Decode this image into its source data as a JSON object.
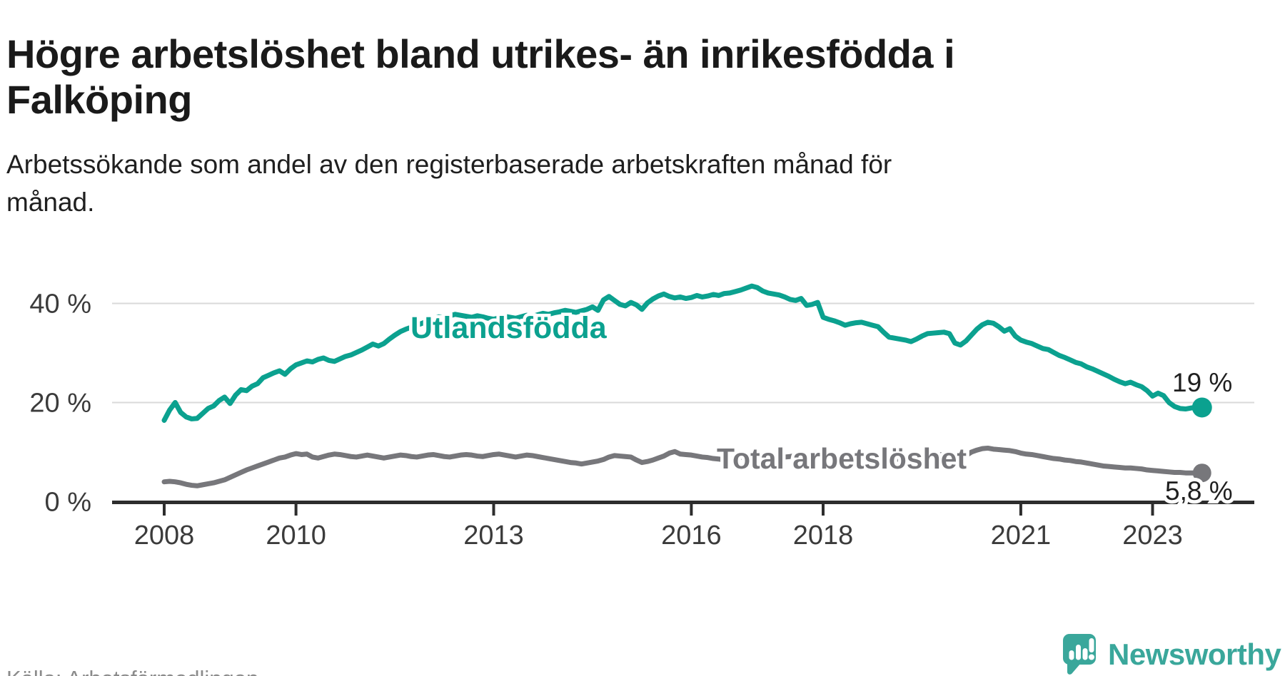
{
  "header": {
    "title": "Högre arbetslöshet bland utrikes- än inrikesfödda i Falköping",
    "subtitle": "Arbetssökande som andel av den registerbaserade arbetskraften månad för månad."
  },
  "footer": {
    "source": "Källa: Arbetsförmedlingen",
    "brand": "Newsworthy"
  },
  "colors": {
    "accent": "#0ba18f",
    "gray": "#77777b",
    "grid": "#d9d9d9",
    "axis": "#2d2d2d",
    "title": "#1a1a1a",
    "sub": "#1f1f1f",
    "tick": "#3b3b3b",
    "source": "#8b8b8b",
    "brand": "#3aa79b",
    "value": "#1f1f1f"
  },
  "chart_data": {
    "type": "line",
    "x_start": "2008-01",
    "x_end": "2023-10",
    "x_resolution": "monthly",
    "ylabel": "",
    "xlabel": "",
    "ylim": [
      0,
      46
    ],
    "grid": "horizontal",
    "legend_position": "inline-labels",
    "gridlines": [
      20,
      40
    ],
    "yticks": [
      {
        "value": 0,
        "label": "0 %"
      },
      {
        "value": 20,
        "label": "20 %"
      },
      {
        "value": 40,
        "label": "40 %"
      }
    ],
    "xticks": [
      {
        "value": 2008,
        "label": "2008"
      },
      {
        "value": 2010,
        "label": "2010"
      },
      {
        "value": 2013,
        "label": "2013"
      },
      {
        "value": 2016,
        "label": "2016"
      },
      {
        "value": 2018,
        "label": "2018"
      },
      {
        "value": 2021,
        "label": "2021"
      },
      {
        "value": 2023,
        "label": "2023"
      }
    ],
    "series": [
      {
        "name": "Utlandsfödda",
        "color": "#0ba18f",
        "end_label": "19 %",
        "end_value": 19,
        "values": [
          16.4,
          18.5,
          20.0,
          18.0,
          17.1,
          16.7,
          16.8,
          17.8,
          18.8,
          19.3,
          20.4,
          21.1,
          19.8,
          21.5,
          22.6,
          22.4,
          23.3,
          23.8,
          25.0,
          25.5,
          26.0,
          26.4,
          25.7,
          26.8,
          27.6,
          28.0,
          28.4,
          28.2,
          28.7,
          29.0,
          28.5,
          28.3,
          28.8,
          29.3,
          29.6,
          30.1,
          30.6,
          31.2,
          31.8,
          31.4,
          31.9,
          32.8,
          33.6,
          34.3,
          34.8,
          35.2,
          35.6,
          36.0,
          36.5,
          36.9,
          37.3,
          37.1,
          37.5,
          37.8,
          37.6,
          37.4,
          37.2,
          37.5,
          37.3,
          37.0,
          36.8,
          37.1,
          37.4,
          37.2,
          37.0,
          37.3,
          37.6,
          37.4,
          37.7,
          38.0,
          37.8,
          38.1,
          38.3,
          38.6,
          38.4,
          38.2,
          38.5,
          38.8,
          39.3,
          38.6,
          40.7,
          41.4,
          40.6,
          39.8,
          39.5,
          40.2,
          39.7,
          38.8,
          40.1,
          40.9,
          41.5,
          41.9,
          41.4,
          41.1,
          41.3,
          41.0,
          41.2,
          41.6,
          41.3,
          41.5,
          41.8,
          41.6,
          42.0,
          42.1,
          42.4,
          42.7,
          43.1,
          43.5,
          43.2,
          42.5,
          42.1,
          41.9,
          41.7,
          41.3,
          40.8,
          40.6,
          41.0,
          39.6,
          39.8,
          40.2,
          37.2,
          36.8,
          36.5,
          36.1,
          35.6,
          35.9,
          36.1,
          36.2,
          35.9,
          35.6,
          35.3,
          34.2,
          33.2,
          33.0,
          32.8,
          32.6,
          32.3,
          32.8,
          33.4,
          33.9,
          34.0,
          34.1,
          34.2,
          33.9,
          32.0,
          31.6,
          32.4,
          33.6,
          34.8,
          35.7,
          36.2,
          36.0,
          35.3,
          34.4,
          34.9,
          33.4,
          32.6,
          32.2,
          31.9,
          31.4,
          30.9,
          30.7,
          30.1,
          29.5,
          29.1,
          28.6,
          28.1,
          27.8,
          27.2,
          26.8,
          26.3,
          25.8,
          25.3,
          24.7,
          24.2,
          23.8,
          24.1,
          23.6,
          23.2,
          22.4,
          21.3,
          21.9,
          21.4,
          20.0,
          19.2,
          18.8,
          18.7,
          18.9,
          19.0,
          19.0
        ]
      },
      {
        "name": "Total arbetslöshet",
        "color": "#77777b",
        "end_label": "5,8 %",
        "end_value": 5.8,
        "values": [
          4.0,
          4.1,
          4.0,
          3.8,
          3.5,
          3.3,
          3.2,
          3.4,
          3.6,
          3.8,
          4.1,
          4.4,
          4.9,
          5.4,
          5.9,
          6.4,
          6.8,
          7.2,
          7.6,
          8.0,
          8.4,
          8.8,
          9.0,
          9.4,
          9.7,
          9.5,
          9.6,
          9.0,
          8.8,
          9.1,
          9.4,
          9.6,
          9.5,
          9.3,
          9.1,
          9.0,
          9.2,
          9.4,
          9.2,
          9.0,
          8.8,
          9.0,
          9.2,
          9.4,
          9.3,
          9.1,
          9.0,
          9.2,
          9.4,
          9.5,
          9.3,
          9.1,
          9.0,
          9.2,
          9.4,
          9.5,
          9.4,
          9.2,
          9.1,
          9.3,
          9.5,
          9.6,
          9.4,
          9.2,
          9.0,
          9.2,
          9.4,
          9.3,
          9.1,
          8.9,
          8.7,
          8.5,
          8.3,
          8.1,
          7.9,
          7.8,
          7.6,
          7.8,
          8.0,
          8.2,
          8.5,
          9.0,
          9.3,
          9.2,
          9.1,
          9.0,
          8.4,
          7.9,
          8.1,
          8.4,
          8.8,
          9.2,
          9.8,
          10.1,
          9.6,
          9.5,
          9.4,
          9.2,
          9.0,
          8.9,
          8.7,
          8.6,
          8.4,
          8.6,
          8.8,
          9.0,
          8.8,
          8.6,
          8.5,
          8.7,
          8.9,
          9.0,
          9.2,
          9.0,
          9.1,
          9.3,
          9.4,
          9.3,
          9.2,
          9.4,
          9.3,
          9.2,
          9.0,
          8.9,
          8.8,
          8.7,
          8.6,
          8.5,
          8.4,
          8.3,
          8.2,
          8.1,
          8.3,
          8.5,
          8.6,
          8.8,
          8.9,
          9.0,
          9.2,
          9.3,
          9.4,
          9.5,
          9.4,
          9.3,
          8.9,
          8.8,
          9.3,
          10.0,
          10.4,
          10.7,
          10.8,
          10.6,
          10.5,
          10.4,
          10.3,
          10.1,
          9.8,
          9.6,
          9.5,
          9.3,
          9.1,
          8.9,
          8.7,
          8.6,
          8.4,
          8.3,
          8.1,
          8.0,
          7.8,
          7.6,
          7.4,
          7.2,
          7.1,
          7.0,
          6.9,
          6.8,
          6.8,
          6.7,
          6.6,
          6.4,
          6.3,
          6.2,
          6.1,
          6.0,
          5.9,
          5.9,
          5.8,
          5.8,
          5.8,
          5.8
        ]
      }
    ]
  }
}
